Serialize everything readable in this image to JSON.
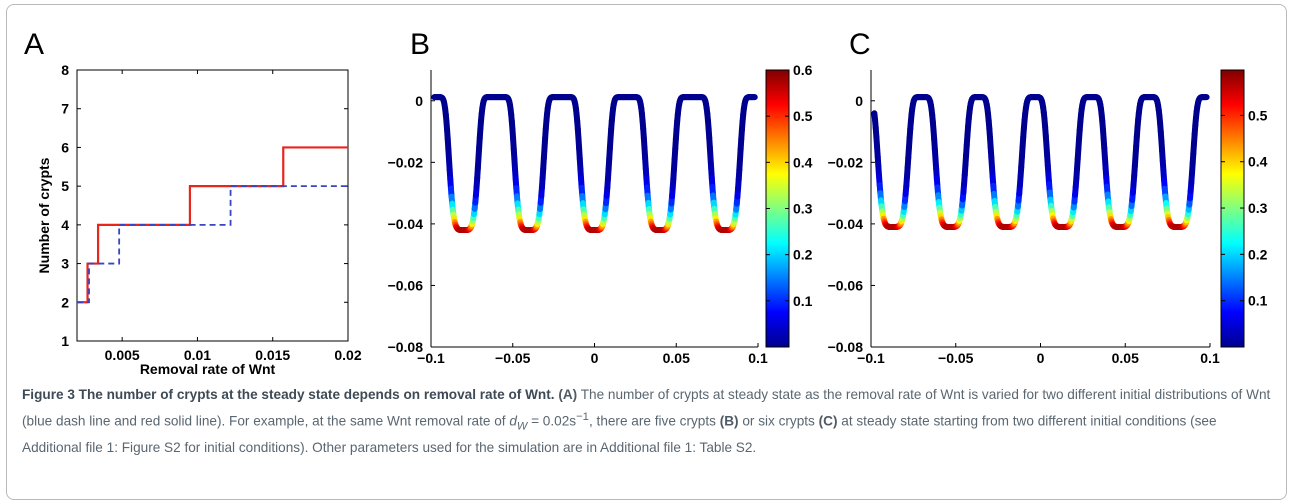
{
  "panels": {
    "a": "A",
    "b": "B",
    "c": "C"
  },
  "colorbar_colors": [
    "#00008f",
    "#0000ff",
    "#0080ff",
    "#00ffff",
    "#80ff80",
    "#ffff00",
    "#ff8000",
    "#ff0000",
    "#800000"
  ],
  "chart_data": [
    {
      "type": "line",
      "panel": "A",
      "title": "",
      "xlabel": "Removal rate of Wnt",
      "ylabel": "Number of crypts",
      "xlim": [
        0.002,
        0.02
      ],
      "ylim": [
        1,
        8
      ],
      "xticks": [
        "0.005",
        "0.01",
        "0.015",
        "0.02"
      ],
      "yticks": [
        "1",
        "2",
        "3",
        "4",
        "5",
        "6",
        "7",
        "8"
      ],
      "series": [
        {
          "style": "solid",
          "color": "#e8261c",
          "x": [
            0.002,
            0.0027,
            0.0027,
            0.0034,
            0.0034,
            0.0095,
            0.0095,
            0.0157,
            0.0157,
            0.02
          ],
          "y": [
            2,
            2,
            3,
            3,
            4,
            4,
            5,
            5,
            6,
            6
          ]
        },
        {
          "style": "dashed",
          "color": "#3a44c4",
          "x": [
            0.002,
            0.0028,
            0.0028,
            0.0048,
            0.0048,
            0.0122,
            0.0122,
            0.02
          ],
          "y": [
            2,
            2,
            3,
            3,
            4,
            4,
            5,
            5
          ]
        }
      ]
    },
    {
      "type": "line",
      "panel": "B",
      "description": "crypt profile, 5 crypts",
      "xlim": [
        -0.1,
        0.1
      ],
      "ylim": [
        -0.08,
        0.01
      ],
      "xticks": [
        "-0.1",
        "-0.05",
        "0",
        "0.05",
        "0.1"
      ],
      "yticks": [
        "0",
        "-0.02",
        "-0.04",
        "-0.06",
        "-0.08"
      ],
      "crypt_centers": [
        -0.08,
        -0.04,
        0,
        0.04,
        0.08
      ],
      "crypt_depth": -0.042,
      "colorbar": {
        "min": 0,
        "max": 0.6,
        "ticks": [
          "0.6",
          "0.5",
          "0.4",
          "0.3",
          "0.2",
          "0.1"
        ]
      }
    },
    {
      "type": "line",
      "panel": "C",
      "description": "crypt profile, 6 crypts",
      "xlim": [
        -0.1,
        0.1
      ],
      "ylim": [
        -0.08,
        0.01
      ],
      "xticks": [
        "-0.1",
        "-0.05",
        "0",
        "0.05",
        "0.1"
      ],
      "yticks": [
        "0",
        "-0.02",
        "-0.04",
        "-0.06",
        "-0.08"
      ],
      "crypt_centers": [
        -0.087,
        -0.053,
        -0.02,
        0.013,
        0.047,
        0.081
      ],
      "crypt_depth": -0.041,
      "colorbar": {
        "min": 0,
        "max": 0.6,
        "ticks": [
          "0.5",
          "0.4",
          "0.3",
          "0.2",
          "0.1"
        ]
      }
    }
  ],
  "caption": {
    "title": "Figure 3 The number of crypts at the steady state depends on removal rate of Wnt.",
    "label_a": "(A)",
    "text1": " The number of crypts at steady state as the removal rate of Wnt is varied for two different initial distributions of Wnt (blue dash line and red solid line). For example, at the same Wnt removal rate of ",
    "formula_d": "d",
    "formula_sub": "W",
    "formula_eq": " = 0.02s",
    "formula_sup": "−1",
    "text2": ", there are five crypts ",
    "label_b": "(B)",
    "text3": " or six crypts ",
    "label_c": "(C)",
    "text4": " at steady state starting from two different initial conditions (see Additional file 1: Figure S2 for initial conditions). Other parameters used for the simulation are in Additional file 1: Table S2."
  }
}
